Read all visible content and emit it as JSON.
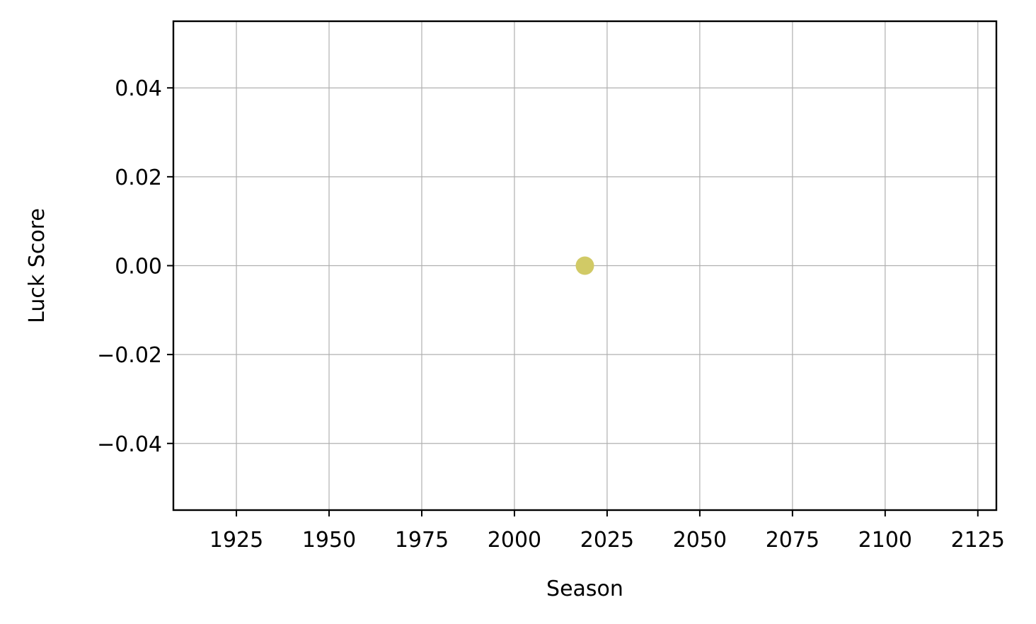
{
  "chart_data": {
    "type": "scatter",
    "title": "",
    "xlabel": "Season",
    "ylabel": "Luck Score",
    "xlim": [
      1908,
      2130
    ],
    "ylim": [
      -0.055,
      0.055
    ],
    "x_ticks": [
      1925,
      1950,
      1975,
      2000,
      2025,
      2050,
      2075,
      2100,
      2125
    ],
    "x_tick_labels": [
      "1925",
      "1950",
      "1975",
      "2000",
      "2025",
      "2050",
      "2075",
      "2100",
      "2125"
    ],
    "y_ticks": [
      -0.04,
      -0.02,
      0.0,
      0.02,
      0.04
    ],
    "y_tick_labels": [
      "−0.04",
      "−0.02",
      "0.00",
      "0.02",
      "0.04"
    ],
    "grid": true,
    "series": [
      {
        "color": "#d1ca66",
        "x": [
          2019
        ],
        "y": [
          0.0
        ]
      }
    ]
  }
}
